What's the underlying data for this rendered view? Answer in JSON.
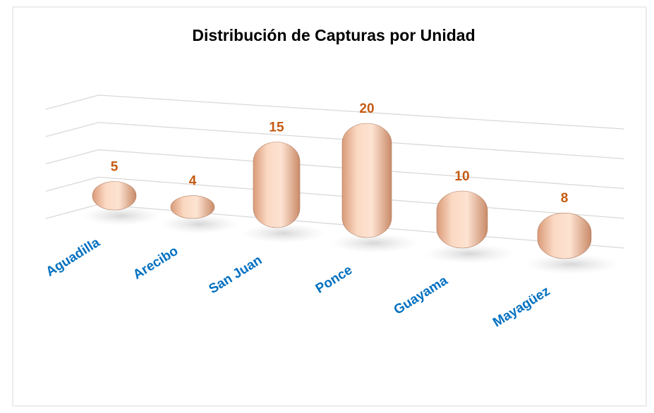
{
  "chart_data": {
    "type": "bar",
    "title": "Distribución de Capturas por Unidad",
    "categories": [
      "Aguadilla",
      "Arecibo",
      "San Juan",
      "Ponce",
      "Guayama",
      "Mayagüez"
    ],
    "values": [
      5,
      4,
      15,
      20,
      10,
      8
    ],
    "color": "#f8cbad",
    "label_color": "#c55a11",
    "category_color": "#0070c0",
    "ylim": [
      0,
      20
    ],
    "yticks": [
      0,
      5,
      10,
      15,
      20
    ],
    "grid": true
  }
}
